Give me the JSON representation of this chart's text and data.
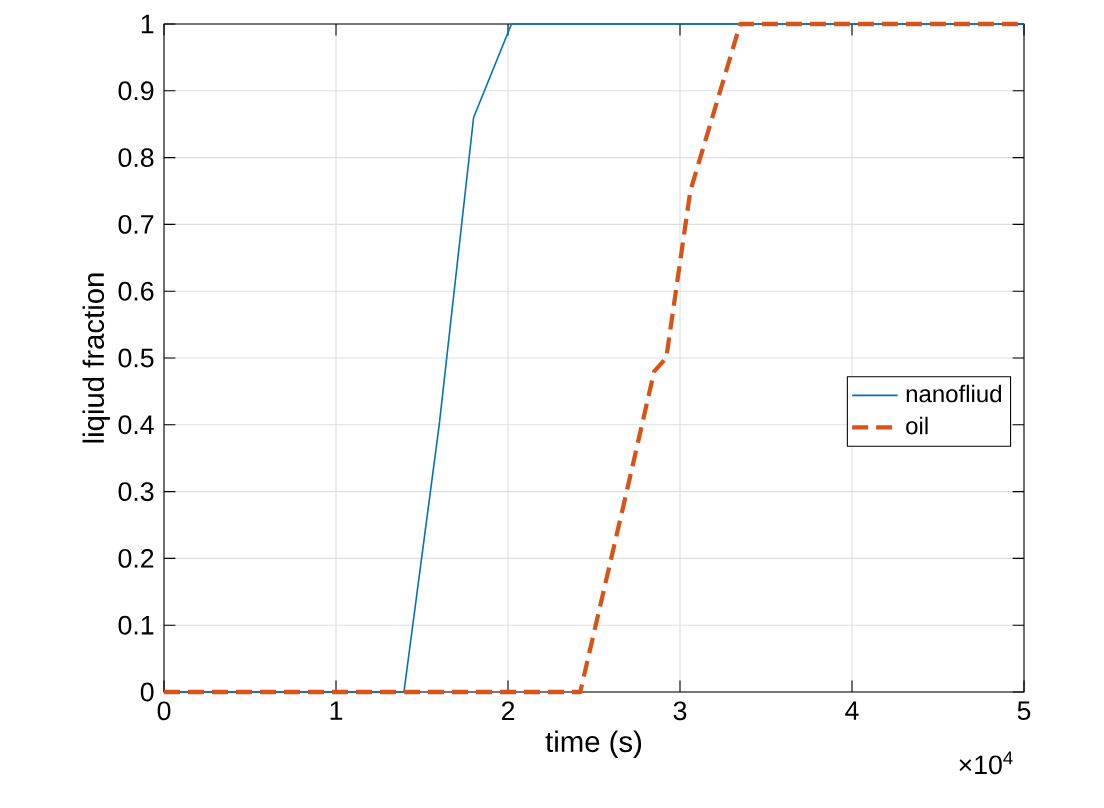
{
  "chart_data": {
    "type": "line",
    "xlabel": "time (s)",
    "ylabel": "liqiud fraction",
    "xlim": [
      0,
      5
    ],
    "ylim": [
      0,
      1
    ],
    "xticks": [
      0,
      1,
      2,
      3,
      4,
      5
    ],
    "yticks": [
      0,
      0.1,
      0.2,
      0.3,
      0.4,
      0.5,
      0.6,
      0.7,
      0.8,
      0.9,
      1
    ],
    "grid": true,
    "legend": "right",
    "annotations": [
      "×10$^{4}$"
    ],
    "series": [
      {
        "name": "nanofliud",
        "color": "#0072bd",
        "line_style": "solid",
        "x": [
          0,
          0.5,
          1,
          1.395,
          1.6,
          1.8,
          2.02,
          2.5,
          3,
          3.35,
          4,
          5
        ],
        "values": [
          0,
          0,
          0,
          0,
          0.4,
          0.86,
          1,
          1,
          1,
          1,
          1,
          1
        ]
      },
      {
        "name": "oil",
        "color": "#d95319",
        "line_style": "dashed",
        "x": [
          0,
          0.5,
          1,
          1.5,
          2,
          2.42,
          2.69,
          2.85,
          2.92,
          3.06,
          3.35,
          4,
          5
        ],
        "values": [
          0,
          0,
          0,
          0,
          0,
          0,
          0.3,
          0.48,
          0.5,
          0.75,
          1,
          1,
          1
        ]
      }
    ]
  }
}
